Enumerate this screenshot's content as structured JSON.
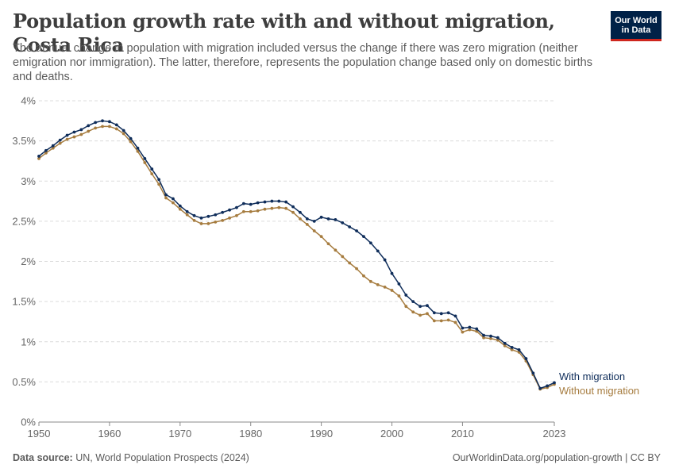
{
  "header": {
    "title": "Population growth rate with and without migration, Costa Rica",
    "subtitle": "The annual change in population with migration included versus the change if there was zero migration (neither emigration nor immigration). The latter, therefore, represents the population change based only on domestic births and deaths."
  },
  "logo": {
    "line1": "Our World",
    "line2": "in Data"
  },
  "footer": {
    "source_label": "Data source:",
    "source_text": "UN, World Population Prospects (2024)",
    "url": "OurWorldinData.org/population-growth | CC BY"
  },
  "colors": {
    "with_migration": "#0f2d5a",
    "without_migration": "#a67c3f",
    "grid": "#dcdcdc"
  },
  "chart_data": {
    "type": "line",
    "title": "Population growth rate with and without migration, Costa Rica",
    "xlabel": "",
    "ylabel": "",
    "xlim": [
      1950,
      2023
    ],
    "ylim": [
      0,
      4
    ],
    "y_ticks": [
      "0%",
      "0.5%",
      "1%",
      "1.5%",
      "2%",
      "2.5%",
      "3%",
      "3.5%",
      "4%"
    ],
    "x_ticks": [
      "1950",
      "1960",
      "1970",
      "1980",
      "1990",
      "2000",
      "2010",
      "2023"
    ],
    "grid": "horizontal dashed",
    "legend": "inline labels at line ends",
    "x": [
      1950,
      1951,
      1952,
      1953,
      1954,
      1955,
      1956,
      1957,
      1958,
      1959,
      1960,
      1961,
      1962,
      1963,
      1964,
      1965,
      1966,
      1967,
      1968,
      1969,
      1970,
      1971,
      1972,
      1973,
      1974,
      1975,
      1976,
      1977,
      1978,
      1979,
      1980,
      1981,
      1982,
      1983,
      1984,
      1985,
      1986,
      1987,
      1988,
      1989,
      1990,
      1991,
      1992,
      1993,
      1994,
      1995,
      1996,
      1997,
      1998,
      1999,
      2000,
      2001,
      2002,
      2003,
      2004,
      2005,
      2006,
      2007,
      2008,
      2009,
      2010,
      2011,
      2012,
      2013,
      2014,
      2015,
      2016,
      2017,
      2018,
      2019,
      2020,
      2021,
      2022,
      2023
    ],
    "series": [
      {
        "name": "With migration",
        "values": [
          3.31,
          3.38,
          3.44,
          3.51,
          3.57,
          3.61,
          3.64,
          3.69,
          3.73,
          3.75,
          3.74,
          3.7,
          3.63,
          3.53,
          3.41,
          3.28,
          3.15,
          3.02,
          2.83,
          2.78,
          2.69,
          2.62,
          2.57,
          2.54,
          2.56,
          2.58,
          2.61,
          2.64,
          2.67,
          2.72,
          2.71,
          2.73,
          2.74,
          2.75,
          2.75,
          2.74,
          2.68,
          2.61,
          2.53,
          2.5,
          2.55,
          2.53,
          2.52,
          2.48,
          2.43,
          2.38,
          2.31,
          2.23,
          2.13,
          2.02,
          1.85,
          1.72,
          1.58,
          1.5,
          1.44,
          1.45,
          1.36,
          1.35,
          1.36,
          1.32,
          1.17,
          1.18,
          1.16,
          1.08,
          1.07,
          1.05,
          0.98,
          0.93,
          0.9,
          0.79,
          0.61,
          0.42,
          0.45,
          0.49
        ]
      },
      {
        "name": "Without migration",
        "values": [
          3.28,
          3.35,
          3.41,
          3.47,
          3.52,
          3.55,
          3.58,
          3.62,
          3.66,
          3.68,
          3.68,
          3.65,
          3.59,
          3.49,
          3.37,
          3.23,
          3.09,
          2.96,
          2.79,
          2.73,
          2.65,
          2.58,
          2.51,
          2.47,
          2.47,
          2.49,
          2.51,
          2.54,
          2.57,
          2.62,
          2.62,
          2.63,
          2.65,
          2.66,
          2.67,
          2.66,
          2.61,
          2.53,
          2.46,
          2.38,
          2.31,
          2.22,
          2.14,
          2.06,
          1.98,
          1.91,
          1.82,
          1.75,
          1.71,
          1.68,
          1.64,
          1.57,
          1.44,
          1.37,
          1.33,
          1.35,
          1.26,
          1.26,
          1.27,
          1.24,
          1.12,
          1.15,
          1.13,
          1.05,
          1.04,
          1.02,
          0.95,
          0.9,
          0.87,
          0.76,
          0.59,
          0.41,
          0.43,
          0.47
        ]
      }
    ]
  }
}
